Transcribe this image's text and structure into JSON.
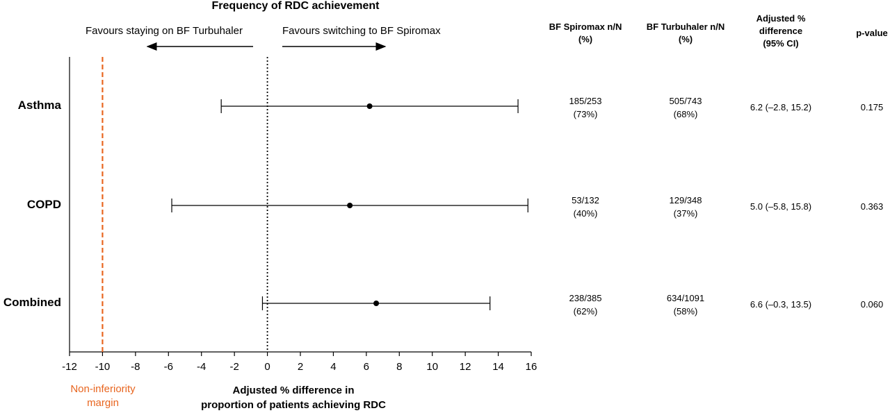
{
  "chart_data": {
    "type": "forest",
    "title": "Frequency of RDC achievement",
    "direction_labels": {
      "left": "Favours staying on BF Turbuhaler",
      "right": "Favours switching to BF Spiromax"
    },
    "xlabel_line1": "Adjusted % difference in",
    "xlabel_line2": "proportion of patients achieving RDC",
    "xlim": [
      -12,
      16
    ],
    "xticks": [
      "-12",
      "-10",
      "-8",
      "-6",
      "-4",
      "-2",
      "0",
      "2",
      "4",
      "6",
      "8",
      "10",
      "12",
      "14",
      "16"
    ],
    "reference_line": 0,
    "non_inferiority_margin": {
      "value": -10,
      "label_line1": "Non-inferiority",
      "label_line2": "margin",
      "color": "#E8651F"
    },
    "rows": [
      {
        "category": "Asthma",
        "estimate": 6.2,
        "ci_low": -2.8,
        "ci_high": 15.2
      },
      {
        "category": "COPD",
        "estimate": 5.0,
        "ci_low": -5.8,
        "ci_high": 15.8
      },
      {
        "category": "Combined",
        "estimate": 6.6,
        "ci_low": -0.3,
        "ci_high": 13.5
      }
    ]
  },
  "table": {
    "headers": {
      "spiromax": [
        "BF Spiromax n/N",
        "(%)"
      ],
      "turbuhaler": [
        "BF Turbuhaler n/N",
        "(%)"
      ],
      "difference": [
        "Adjusted %",
        "difference",
        "(95% CI)"
      ],
      "pvalue": [
        "p-value"
      ]
    },
    "rows": [
      {
        "spiromax": [
          "185/253",
          "(73%)"
        ],
        "turbuhaler": [
          "505/743",
          "(68%)"
        ],
        "difference": "6.2 (–2.8, 15.2)",
        "pvalue": "0.175"
      },
      {
        "spiromax": [
          "53/132",
          "(40%)"
        ],
        "turbuhaler": [
          "129/348",
          "(37%)"
        ],
        "difference": "5.0 (–5.8, 15.8)",
        "pvalue": "0.363"
      },
      {
        "spiromax": [
          "238/385",
          "(62%)"
        ],
        "turbuhaler": [
          "634/1091",
          "(58%)"
        ],
        "difference": "6.6 (–0.3, 13.5)",
        "pvalue": "0.060"
      }
    ]
  }
}
